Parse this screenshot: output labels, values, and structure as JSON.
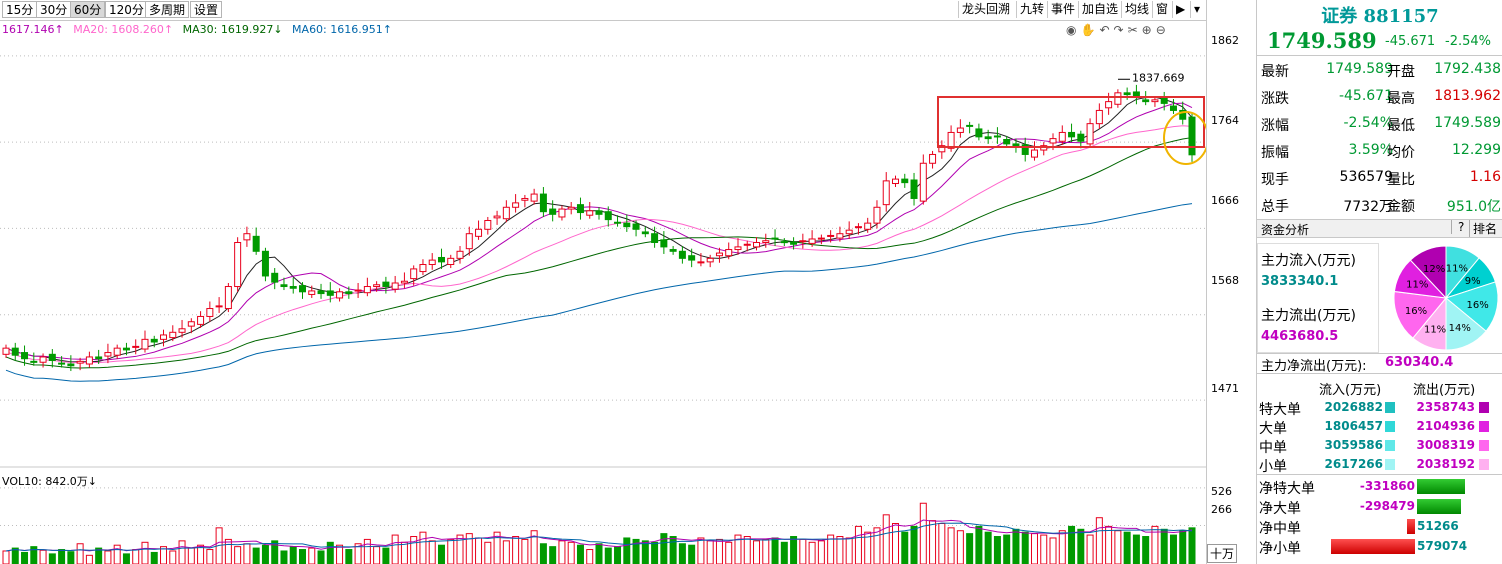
{
  "toolbar": {
    "periods": [
      "15分",
      "30分",
      "60分",
      "120分",
      "多周期",
      "设置"
    ],
    "active_period": "60分",
    "tools": [
      "龙头回溯",
      "九转",
      "事件",
      "加自选",
      "均线",
      "窗"
    ],
    "arrow_icon": "play-arrow-icon",
    "dropdown_icon": "chevron-down-icon"
  },
  "ma_legend": [
    {
      "label": "1617.146↑",
      "color": "#b000b0"
    },
    {
      "label": "MA20: 1608.260↑",
      "color": "#ff66cc"
    },
    {
      "label": "MA30: 1619.927↓",
      "color": "#006600"
    },
    {
      "label": "MA60: 1616.951↑",
      "color": "#0066aa"
    }
  ],
  "chart_icons": [
    "eye-icon",
    "hand-icon",
    "undo-icon",
    "redo-icon",
    "scissors-icon",
    "zoom-in-icon",
    "zoom-out-icon"
  ],
  "price_axis": [
    "1862",
    "1764",
    "1666",
    "1568",
    "1471"
  ],
  "vol_axis": [
    "526",
    "266"
  ],
  "vol_unit": "十万",
  "vol_legend": "VOL10: 842.0万↓",
  "peak_label": "1837.669",
  "colors": {
    "up": "#e8001c",
    "down": "#009a00",
    "ma5": "#222222",
    "ma10": "#b000b0",
    "ma20": "#ff66cc",
    "ma30": "#006600",
    "ma60": "#0066aa",
    "box": "#e03030",
    "circle": "#f0b400"
  },
  "chart_data": {
    "type": "candlestick",
    "ylim": [
      1420,
      1880
    ],
    "closes": [
      1530,
      1522,
      1518,
      1514,
      1520,
      1516,
      1512,
      1510,
      1515,
      1520,
      1518,
      1525,
      1530,
      1528,
      1532,
      1540,
      1537,
      1545,
      1548,
      1552,
      1560,
      1566,
      1575,
      1578,
      1600,
      1650,
      1660,
      1640,
      1612,
      1605,
      1600,
      1598,
      1594,
      1595,
      1592,
      1590,
      1594,
      1592,
      1596,
      1600,
      1602,
      1600,
      1604,
      1606,
      1620,
      1625,
      1630,
      1628,
      1632,
      1640,
      1660,
      1665,
      1675,
      1680,
      1690,
      1695,
      1700,
      1705,
      1685,
      1682,
      1688,
      1690,
      1684,
      1686,
      1682,
      1676,
      1672,
      1668,
      1665,
      1660,
      1650,
      1645,
      1640,
      1632,
      1630,
      1628,
      1632,
      1638,
      1642,
      1645,
      1648,
      1650,
      1652,
      1654,
      1650,
      1648,
      1652,
      1654,
      1655,
      1658,
      1660,
      1664,
      1668,
      1672,
      1690,
      1720,
      1722,
      1718,
      1700,
      1740,
      1750,
      1760,
      1775,
      1780,
      1782,
      1770,
      1768,
      1770,
      1762,
      1758,
      1750,
      1755,
      1760,
      1768,
      1775,
      1770,
      1765,
      1785,
      1800,
      1810,
      1820,
      1818,
      1815,
      1810,
      1812,
      1808,
      1800,
      1790,
      1749.589
    ],
    "price_levels": [
      1862,
      1764,
      1666,
      1568,
      1471
    ],
    "ma_latest": {
      "MA10": 1617.146,
      "MA20": 1608.26,
      "MA30": 1619.927,
      "MA60": 1616.951
    },
    "volume_ylim": [
      0,
      560
    ],
    "volumes": [
      90,
      110,
      80,
      120,
      95,
      70,
      100,
      85,
      140,
      60,
      110,
      90,
      130,
      70,
      100,
      150,
      80,
      120,
      90,
      160,
      110,
      130,
      100,
      250,
      170,
      120,
      140,
      110,
      130,
      160,
      90,
      120,
      100,
      110,
      90,
      150,
      130,
      100,
      140,
      170,
      120,
      110,
      200,
      150,
      190,
      220,
      160,
      130,
      170,
      200,
      210,
      180,
      150,
      220,
      160,
      190,
      170,
      230,
      140,
      120,
      160,
      150,
      130,
      100,
      140,
      110,
      120,
      180,
      170,
      160,
      150,
      210,
      190,
      140,
      130,
      180,
      160,
      170,
      150,
      200,
      190,
      160,
      170,
      180,
      150,
      190,
      170,
      150,
      160,
      200,
      190,
      180,
      260,
      220,
      250,
      340,
      280,
      220,
      260,
      420,
      300,
      280,
      250,
      230,
      210,
      260,
      220,
      190,
      200,
      240,
      220,
      210,
      200,
      180,
      230,
      260,
      240,
      200,
      320,
      260,
      230,
      220,
      200,
      190,
      260,
      240,
      200,
      230,
      250
    ],
    "vol_ma10": 842.0
  },
  "side": {
    "title": "证券 881157",
    "price": "1749.589",
    "change": "-45.671",
    "change_pct": "-2.54%",
    "rows": [
      {
        "l1": "最新",
        "v1": "1749.589",
        "c1": "green",
        "l2": "开盘",
        "v2": "1792.438",
        "c2": "green"
      },
      {
        "l1": "涨跌",
        "v1": "-45.671",
        "c1": "green",
        "l2": "最高",
        "v2": "1813.962",
        "c2": "red"
      },
      {
        "l1": "涨幅",
        "v1": "-2.54%",
        "c1": "green",
        "l2": "最低",
        "v2": "1749.589",
        "c2": "green"
      },
      {
        "l1": "振幅",
        "v1": "3.59%",
        "c1": "green",
        "l2": "均价",
        "v2": "12.299",
        "c2": "green"
      },
      {
        "l1": "现手",
        "v1": "536579",
        "c1": "black",
        "l2": "量比",
        "v2": "1.16",
        "c2": "red"
      },
      {
        "l1": "总手",
        "v1": "7732万",
        "c1": "black",
        "l2": "金额",
        "v2": "951.0亿",
        "c2": "green"
      }
    ],
    "fund_header": "资金分析",
    "help_label": "?",
    "rank_label": "排名",
    "inflow_label": "主力流入(万元)",
    "inflow_value": "3833340.1",
    "outflow_label": "主力流出(万元)",
    "outflow_value": "4463680.5",
    "net_label": "主力净流出(万元):",
    "net_value": "630340.4",
    "pie": [
      {
        "pct": 11,
        "label": "11%",
        "color": "#40e0e0"
      },
      {
        "pct": 9,
        "label": "9%",
        "color": "#00d0d0"
      },
      {
        "pct": 16,
        "label": "16%",
        "color": "#40e8e8"
      },
      {
        "pct": 14,
        "label": "14%",
        "color": "#a0f4f4"
      },
      {
        "pct": 11,
        "label": "11%",
        "color": "#ffb0f0"
      },
      {
        "pct": 16,
        "label": "16%",
        "color": "#ff66ee"
      },
      {
        "pct": 11,
        "label": "11%",
        "color": "#e020e0"
      },
      {
        "pct": 12,
        "label": "12%",
        "color": "#b000b0"
      }
    ],
    "flow_head_in": "流入(万元)",
    "flow_head_out": "流出(万元)",
    "flows": [
      {
        "name": "特大单",
        "inflow": "2026882",
        "outflow": "2358743",
        "cin": "#20c0c0",
        "cout": "#b000b0"
      },
      {
        "name": "大单",
        "inflow": "1806457",
        "outflow": "2104936",
        "cin": "#30d8d8",
        "cout": "#e020e0"
      },
      {
        "name": "中单",
        "inflow": "3059586",
        "outflow": "3008319",
        "cin": "#60e8e8",
        "cout": "#ff66ee"
      },
      {
        "name": "小单",
        "inflow": "2617266",
        "outflow": "2038192",
        "cin": "#a0f4f4",
        "cout": "#ffb0f0"
      }
    ],
    "nets": [
      {
        "name": "净特大单",
        "value": "-331860",
        "sign": -1,
        "mag": 0.57
      },
      {
        "name": "净大单",
        "value": "-298479",
        "sign": -1,
        "mag": 0.52
      },
      {
        "name": "净中单",
        "value": "51266",
        "sign": 1,
        "mag": 0.09
      },
      {
        "name": "净小单",
        "value": "579074",
        "sign": 1,
        "mag": 1.0
      }
    ]
  }
}
